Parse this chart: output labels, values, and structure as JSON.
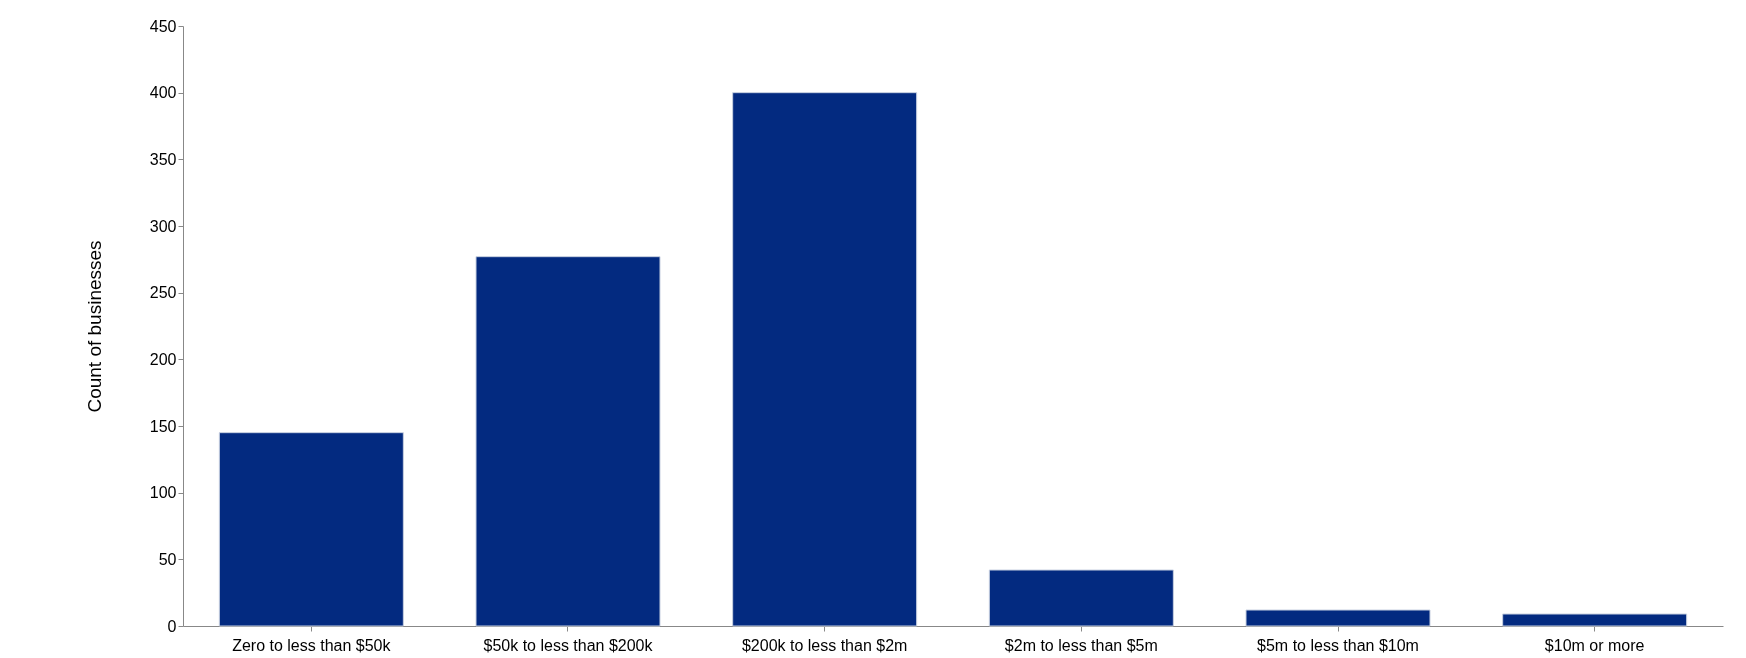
{
  "chart_data": {
    "type": "bar",
    "ylabel": "Count of businesses",
    "categories": [
      "Zero to less than $50k",
      "$50k to less than $200k",
      "$200k to less than $2m",
      "$2m to less than $5m",
      "$5m to less than $10m",
      "$10m or more"
    ],
    "values": [
      145,
      277,
      400,
      42,
      12,
      9
    ],
    "color": "#032a80",
    "ylim": [
      0,
      450
    ],
    "yticks": [
      0,
      50,
      100,
      150,
      200,
      250,
      300,
      350,
      400,
      450
    ],
    "grid": false
  }
}
